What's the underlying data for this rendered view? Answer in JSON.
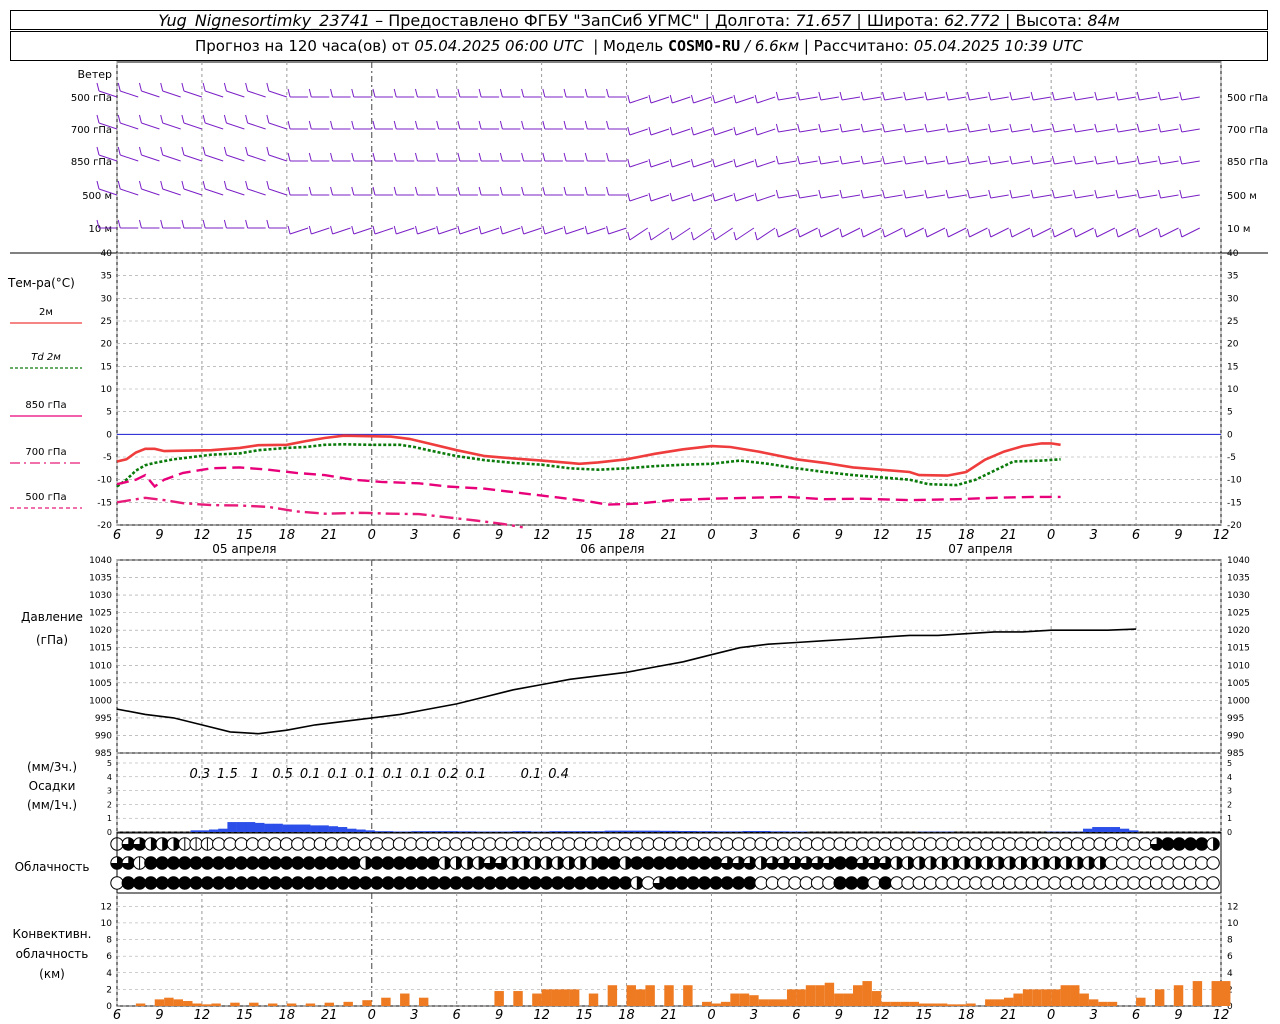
{
  "header": {
    "station": "Yug_Nignesortimky_23741",
    "dash": "–",
    "provider": "Предоставлено ФГБУ \"ЗапСиб УГМС\"",
    "lon_label": "Долгота:",
    "lon": "71.657",
    "lat_label": "Широта:",
    "lat": "62.772",
    "alt_label": "Высота:",
    "alt": "84м",
    "forecast_prefix": "Прогноз на 120 часа(ов) от",
    "forecast_start": "05.04.2025 06:00 UTC",
    "model_label": "Модель",
    "model": "COSMO-RU",
    "resolution": "/ 6.6км",
    "calc_label": "Рассчитано:",
    "calc": "05.04.2025 10:39 UTC"
  },
  "colors": {
    "wind": "#7a1fc6",
    "t2m": "#ef3c3c",
    "td2m": "#0a7a0a",
    "t850": "#e8007a",
    "t700": "#e81a7a",
    "t500": "#e81a7a",
    "pressure": "#000000",
    "precip": "#2b4fe8",
    "convective": "#ee7a22",
    "grid": "#9a9a9a",
    "zero_line": "#1a1ad0"
  },
  "wind_panel": {
    "title": "Ветер",
    "levels": [
      "500 гПа",
      "700 гПа",
      "850 гПа",
      "500 м",
      "10 м"
    ]
  },
  "temp_panel": {
    "title": "Тем-ра(°C)",
    "legend": [
      {
        "key": "t2m",
        "label": "2м",
        "prefix": ""
      },
      {
        "key": "td2m",
        "label": "2м",
        "prefix": "Td"
      },
      {
        "key": "t850",
        "label": "гПа",
        "prefix": "850"
      },
      {
        "key": "t700",
        "label": "гПа",
        "prefix": "700"
      },
      {
        "key": "t500",
        "label": "гПа",
        "prefix": "500"
      }
    ],
    "yticks": [
      "40",
      "35",
      "30",
      "25",
      "20",
      "15",
      "10",
      "5",
      "0",
      "-5",
      "-10",
      "-15",
      "-20"
    ]
  },
  "time_axis": {
    "hours": [
      "6",
      "9",
      "12",
      "15",
      "18",
      "21",
      "0",
      "3",
      "6",
      "9",
      "12",
      "15",
      "18",
      "21",
      "0",
      "3",
      "6",
      "9",
      "12",
      "15",
      "18",
      "21",
      "0",
      "3",
      "6",
      "9",
      "12"
    ],
    "dates": [
      "05 апреля",
      "06 апреля",
      "07 апреля"
    ]
  },
  "pressure_panel": {
    "title": "Давление",
    "unit": "(гПа)",
    "yticks": [
      "1040",
      "1035",
      "1030",
      "1025",
      "1020",
      "1015",
      "1010",
      "1005",
      "1000",
      "995",
      "990",
      "985"
    ]
  },
  "precip_panel": {
    "unit3": "(мм/3ч.)",
    "title": "Осадки",
    "unit1": "(мм/1ч.)",
    "yticks": [
      "5",
      "4",
      "3",
      "2",
      "1",
      "0"
    ],
    "labels_3h": [
      {
        "hour": 9,
        "text": "0.3"
      },
      {
        "hour": 12,
        "text": "1.5"
      },
      {
        "hour": 15,
        "text": "1"
      },
      {
        "hour": 18,
        "text": "0.5"
      },
      {
        "hour": 21,
        "text": "0.1"
      },
      {
        "hour": 24,
        "text": "0.1"
      },
      {
        "hour": 27,
        "text": "0.1"
      },
      {
        "hour": 30,
        "text": "0.1"
      },
      {
        "hour": 33,
        "text": "0.1"
      },
      {
        "hour": 36,
        "text": "0.2"
      },
      {
        "hour": 39,
        "text": "0.1"
      },
      {
        "hour": 45,
        "text": "0.1"
      },
      {
        "hour": 48,
        "text": "0.4"
      }
    ]
  },
  "cloud_panel": {
    "title": "Облачность"
  },
  "conv_panel": {
    "title1": "Конвективн.",
    "title2": "облачность",
    "unit": "(км)",
    "yticks": [
      "12",
      "10",
      "8",
      "6",
      "4",
      "2",
      "0"
    ]
  },
  "chart_data": {
    "type": "line",
    "x_hours_from_start": [
      0,
      3,
      6,
      9,
      12,
      15,
      18,
      21,
      24,
      27,
      30,
      33,
      36,
      39,
      42,
      45,
      48,
      51,
      54,
      57,
      60,
      63,
      66,
      69,
      72,
      75,
      78,
      81,
      84,
      87,
      90,
      93,
      96,
      99,
      102,
      105,
      108,
      111,
      114,
      117,
      120,
      123,
      126,
      129,
      132,
      135,
      138,
      141,
      144,
      147,
      150,
      153,
      156,
      159,
      162,
      165,
      168,
      171,
      174,
      177,
      180,
      183,
      186,
      189,
      192,
      195,
      198,
      201,
      204,
      207,
      210,
      213,
      216,
      219,
      222,
      225,
      228,
      231,
      234
    ],
    "series": [
      {
        "name": "2м",
        "key": "t2m",
        "points": [
          [
            0,
            -6
          ],
          [
            2,
            -5.5
          ],
          [
            4,
            -4
          ],
          [
            6,
            -3.2
          ],
          [
            8,
            -3.2
          ],
          [
            10,
            -3.7
          ],
          [
            14,
            -3.6
          ],
          [
            20,
            -3.5
          ],
          [
            26,
            -3
          ],
          [
            30,
            -2.4
          ],
          [
            36,
            -2.3
          ],
          [
            40,
            -1.5
          ],
          [
            44,
            -0.8
          ],
          [
            48,
            -0.3
          ],
          [
            52,
            -0.4
          ],
          [
            58,
            -0.5
          ],
          [
            62,
            -1
          ],
          [
            66,
            -2
          ],
          [
            72,
            -3.5
          ],
          [
            78,
            -4.8
          ],
          [
            84,
            -5.3
          ],
          [
            90,
            -5.8
          ],
          [
            96,
            -6.3
          ],
          [
            98,
            -6.5
          ],
          [
            102,
            -6.2
          ],
          [
            108,
            -5.5
          ],
          [
            114,
            -4.3
          ],
          [
            120,
            -3.3
          ],
          [
            126,
            -2.6
          ],
          [
            130,
            -2.8
          ],
          [
            136,
            -3.8
          ],
          [
            144,
            -5.5
          ],
          [
            150,
            -6.3
          ],
          [
            156,
            -7.3
          ],
          [
            162,
            -7.8
          ],
          [
            168,
            -8.3
          ],
          [
            170,
            -9
          ],
          [
            176,
            -9.1
          ],
          [
            180,
            -8.3
          ],
          [
            184,
            -5.6
          ],
          [
            188,
            -3.8
          ],
          [
            192,
            -2.6
          ],
          [
            196,
            -2
          ],
          [
            198,
            -2
          ],
          [
            200,
            -2.3
          ]
        ]
      },
      {
        "name": "2м",
        "key": "td2m",
        "points": [
          [
            0,
            -11.5
          ],
          [
            2,
            -10
          ],
          [
            4,
            -8
          ],
          [
            6,
            -6.8
          ],
          [
            8,
            -6.3
          ],
          [
            12,
            -5.5
          ],
          [
            16,
            -5
          ],
          [
            20,
            -4.5
          ],
          [
            26,
            -4.2
          ],
          [
            30,
            -3.5
          ],
          [
            36,
            -3
          ],
          [
            40,
            -2.8
          ],
          [
            44,
            -2.3
          ],
          [
            48,
            -2.2
          ],
          [
            54,
            -2.3
          ],
          [
            60,
            -2.3
          ],
          [
            63,
            -2.8
          ],
          [
            66,
            -3.5
          ],
          [
            72,
            -4.8
          ],
          [
            78,
            -5.7
          ],
          [
            84,
            -6.3
          ],
          [
            90,
            -6.7
          ],
          [
            96,
            -7.5
          ],
          [
            102,
            -7.8
          ],
          [
            108,
            -7.5
          ],
          [
            114,
            -7
          ],
          [
            120,
            -6.7
          ],
          [
            126,
            -6.5
          ],
          [
            132,
            -5.8
          ],
          [
            138,
            -6.5
          ],
          [
            144,
            -7.5
          ],
          [
            150,
            -8.3
          ],
          [
            156,
            -9
          ],
          [
            162,
            -9.5
          ],
          [
            168,
            -10
          ],
          [
            172,
            -11
          ],
          [
            178,
            -11.2
          ],
          [
            182,
            -10
          ],
          [
            186,
            -8
          ],
          [
            190,
            -6
          ],
          [
            196,
            -5.8
          ],
          [
            200,
            -5.5
          ]
        ]
      },
      {
        "name": "гПа",
        "key": "t850",
        "points": [
          [
            0,
            -11
          ],
          [
            4,
            -10
          ],
          [
            6,
            -9
          ],
          [
            8,
            -11.5
          ],
          [
            10,
            -10
          ],
          [
            14,
            -8.5
          ],
          [
            20,
            -7.5
          ],
          [
            26,
            -7.3
          ],
          [
            32,
            -7.8
          ],
          [
            38,
            -8.5
          ],
          [
            44,
            -9
          ],
          [
            50,
            -10
          ],
          [
            56,
            -10.5
          ],
          [
            64,
            -10.8
          ],
          [
            70,
            -11.5
          ],
          [
            78,
            -12
          ],
          [
            86,
            -13
          ],
          [
            94,
            -14
          ],
          [
            100,
            -14.8
          ],
          [
            104,
            -15.5
          ],
          [
            110,
            -15.3
          ],
          [
            118,
            -14.5
          ],
          [
            126,
            -14.2
          ],
          [
            134,
            -14
          ],
          [
            142,
            -13.8
          ],
          [
            150,
            -14.3
          ],
          [
            158,
            -14.2
          ],
          [
            168,
            -14.5
          ],
          [
            178,
            -14.3
          ],
          [
            186,
            -14
          ],
          [
            194,
            -13.8
          ],
          [
            200,
            -13.8
          ]
        ]
      },
      {
        "name": "гПа",
        "key": "t700",
        "points": [
          [
            0,
            -15
          ],
          [
            6,
            -14
          ],
          [
            10,
            -14.5
          ],
          [
            14,
            -15.2
          ],
          [
            20,
            -15.6
          ],
          [
            26,
            -15.7
          ],
          [
            32,
            -16
          ],
          [
            38,
            -17
          ],
          [
            44,
            -17.5
          ],
          [
            52,
            -17.3
          ],
          [
            58,
            -17.5
          ],
          [
            64,
            -17.6
          ],
          [
            70,
            -18.3
          ],
          [
            76,
            -19
          ],
          [
            82,
            -19.8
          ],
          [
            86,
            -20.5
          ]
        ]
      }
    ],
    "pressure_hpa": [
      [
        0,
        997.5
      ],
      [
        6,
        996
      ],
      [
        12,
        995
      ],
      [
        18,
        993
      ],
      [
        24,
        991
      ],
      [
        30,
        990.5
      ],
      [
        36,
        991.5
      ],
      [
        42,
        993
      ],
      [
        48,
        994
      ],
      [
        54,
        995
      ],
      [
        60,
        996
      ],
      [
        66,
        997.5
      ],
      [
        72,
        999
      ],
      [
        78,
        1001
      ],
      [
        84,
        1003
      ],
      [
        90,
        1004.5
      ],
      [
        96,
        1006
      ],
      [
        102,
        1007
      ],
      [
        108,
        1008
      ],
      [
        114,
        1009.5
      ],
      [
        120,
        1011
      ],
      [
        126,
        1013
      ],
      [
        132,
        1015
      ],
      [
        138,
        1016
      ],
      [
        144,
        1016.5
      ],
      [
        150,
        1017
      ],
      [
        156,
        1017.5
      ],
      [
        162,
        1018
      ],
      [
        168,
        1018.5
      ],
      [
        174,
        1018.5
      ],
      [
        180,
        1019
      ],
      [
        186,
        1019.5
      ],
      [
        192,
        1019.5
      ],
      [
        198,
        1020
      ],
      [
        204,
        1020
      ],
      [
        210,
        1020
      ],
      [
        216,
        1020.3
      ]
    ],
    "precip_1h_mm": [
      0,
      0,
      0,
      0,
      0,
      0,
      0,
      0,
      0.1,
      0.1,
      0.15,
      0.2,
      0.6,
      0.6,
      0.6,
      0.55,
      0.5,
      0.5,
      0.45,
      0.45,
      0.45,
      0.4,
      0.4,
      0.35,
      0.3,
      0.2,
      0.15,
      0.1,
      0.05,
      0.05,
      0.03,
      0.03,
      0.05,
      0.05,
      0.05,
      0.05,
      0.05,
      0.04,
      0.04,
      0.03,
      0.03,
      0.03,
      0.03,
      0.05,
      0.05,
      0.03,
      0.03,
      0.05,
      0.05,
      0.05,
      0.05,
      0.05,
      0.05,
      0.08,
      0.08,
      0.08,
      0.08,
      0.08,
      0.08,
      0.07,
      0.07,
      0.06,
      0.06,
      0.05,
      0.05,
      0.04,
      0.04,
      0.04,
      0.06,
      0.06,
      0.06,
      0.04,
      0.04,
      0.03,
      0.03,
      0,
      0,
      0,
      0,
      0,
      0,
      0,
      0,
      0,
      0,
      0,
      0,
      0.02,
      0.02,
      0.02,
      0.02,
      0,
      0,
      0,
      0,
      0,
      0,
      0,
      0,
      0,
      0,
      0.02,
      0.02,
      0.02,
      0.02,
      0.2,
      0.3,
      0.3,
      0.3,
      0.2,
      0.1
    ],
    "convective_km": [
      [
        0,
        0
      ],
      [
        4,
        0.3
      ],
      [
        8,
        0.8
      ],
      [
        10,
        1
      ],
      [
        12,
        0.8
      ],
      [
        14,
        0.6
      ],
      [
        16,
        0.3
      ],
      [
        18,
        0.2
      ],
      [
        20,
        0.3
      ],
      [
        24,
        0.4
      ],
      [
        28,
        0.4
      ],
      [
        32,
        0.3
      ],
      [
        36,
        0.3
      ],
      [
        40,
        0.3
      ],
      [
        44,
        0.4
      ],
      [
        48,
        0.5
      ],
      [
        52,
        0.7
      ],
      [
        56,
        1
      ],
      [
        60,
        1.5
      ],
      [
        64,
        1
      ],
      [
        68,
        0
      ],
      [
        72,
        0
      ],
      [
        76,
        0
      ],
      [
        80,
        1.8
      ],
      [
        84,
        1.8
      ],
      [
        88,
        1.5
      ],
      [
        90,
        2
      ],
      [
        92,
        2
      ],
      [
        94,
        2
      ],
      [
        96,
        2
      ],
      [
        100,
        1.5
      ],
      [
        104,
        2.5
      ],
      [
        108,
        2.5
      ],
      [
        110,
        2
      ],
      [
        112,
        2.5
      ],
      [
        116,
        2.5
      ],
      [
        120,
        2.5
      ],
      [
        124,
        0.5
      ],
      [
        126,
        0.3
      ],
      [
        128,
        0.5
      ],
      [
        130,
        1.5
      ],
      [
        132,
        1.5
      ],
      [
        134,
        1.3
      ],
      [
        136,
        0.8
      ],
      [
        138,
        0.8
      ],
      [
        140,
        0.8
      ],
      [
        142,
        2
      ],
      [
        144,
        2
      ],
      [
        146,
        2.5
      ],
      [
        148,
        2.5
      ],
      [
        150,
        2.8
      ],
      [
        152,
        1.5
      ],
      [
        154,
        1.5
      ],
      [
        156,
        2.5
      ],
      [
        158,
        3
      ],
      [
        160,
        1.8
      ],
      [
        162,
        0.5
      ],
      [
        164,
        0.5
      ],
      [
        166,
        0.5
      ],
      [
        168,
        0.5
      ],
      [
        170,
        0.3
      ],
      [
        172,
        0.3
      ],
      [
        174,
        0.3
      ],
      [
        176,
        0.2
      ],
      [
        178,
        0.2
      ],
      [
        180,
        0.3
      ],
      [
        184,
        0.8
      ],
      [
        186,
        0.8
      ],
      [
        188,
        1
      ],
      [
        190,
        1.5
      ],
      [
        192,
        2
      ],
      [
        194,
        2
      ],
      [
        196,
        2
      ],
      [
        198,
        2
      ],
      [
        200,
        2.5
      ],
      [
        202,
        2.5
      ],
      [
        204,
        1.5
      ],
      [
        206,
        0.8
      ],
      [
        208,
        0.5
      ],
      [
        210,
        0.5
      ],
      [
        216,
        1
      ],
      [
        220,
        2
      ],
      [
        224,
        2.5
      ],
      [
        228,
        3
      ],
      [
        232,
        3
      ],
      [
        234,
        3
      ]
    ],
    "cloud_rows": {
      "upper": "mqqhhhmmmnnnnnnnnnnnnnnnnnnnnnnnnnnnnnnnnnnnnnnnnnnnnnnnnnnnnnnnnnnnnnnnnnnnnnnnnnnnnnnnnnnnqffffhhhhhhhhhhhqmqqqnnnnnnnnnnnnnnnnhhh",
      "middle": "qqmfffffffffffffffffffhffffffhhhhqqhhhhhhhhffhffffffffqqqhqqqqqqffqqqhhhhhhhhhhhhhhhhhhhnnnnnnnnnnnnnnnffffffffffffffffffhhhhhhhhhhhhnnhfff",
      "lower": "nfffffffffffffffffffffffffffffffffffffffffffffhnqffffffffnnnnnnnfffnfnnnnnnnnnnnnnnnnnnnnnnnnnnnnnnnnnnnnnnnnnnfnnnnnnnnnnnnnnnnnnnnfnffff"
    }
  }
}
